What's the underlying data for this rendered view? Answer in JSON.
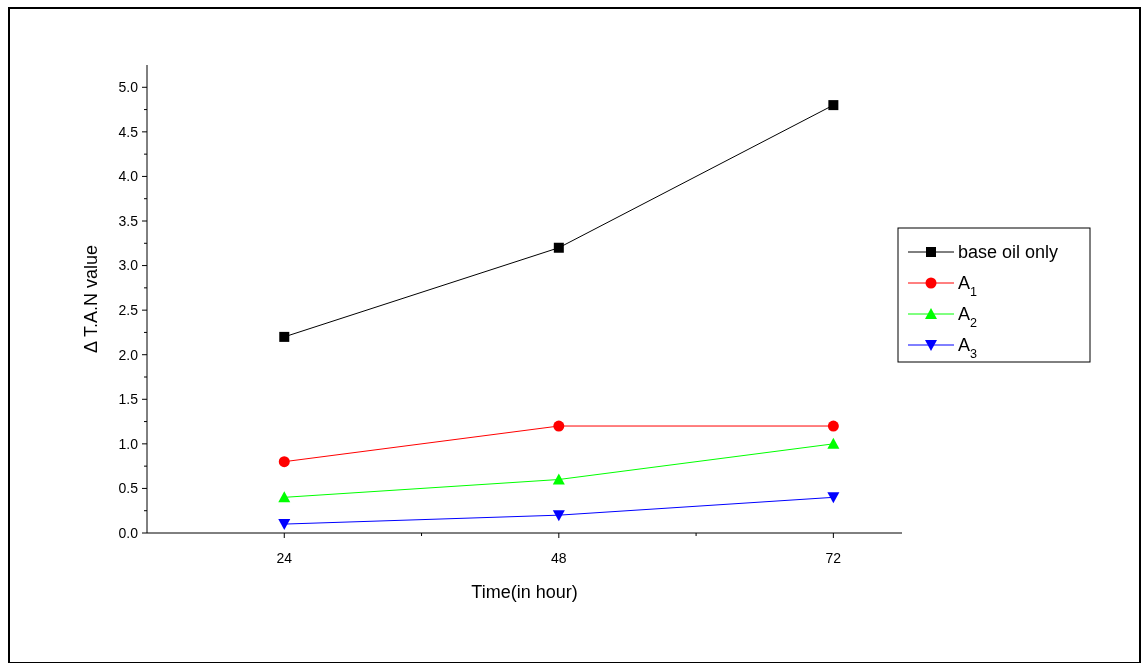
{
  "chart_data": {
    "type": "line",
    "xlabel": "Time(in hour)",
    "ylabel": "Δ T.A.N value",
    "x": [
      24,
      48,
      72
    ],
    "xlim": [
      12,
      78
    ],
    "xticks": [
      24,
      {
        "value": 36,
        "label": null
      },
      48,
      {
        "value": 60,
        "label": null
      },
      72
    ],
    "ylim": [
      0,
      5.25
    ],
    "yticks": [
      {
        "value": 0,
        "label": "0.0"
      },
      {
        "value": 0.25,
        "label": null
      },
      {
        "value": 0.5,
        "label": "0.5"
      },
      {
        "value": 0.75,
        "label": null
      },
      {
        "value": 1,
        "label": "1.0"
      },
      {
        "value": 1.25,
        "label": null
      },
      {
        "value": 1.5,
        "label": "1.5"
      },
      {
        "value": 1.75,
        "label": null
      },
      {
        "value": 2,
        "label": "2.0"
      },
      {
        "value": 2.25,
        "label": null
      },
      {
        "value": 2.5,
        "label": "2.5"
      },
      {
        "value": 2.75,
        "label": null
      },
      {
        "value": 3,
        "label": "3.0"
      },
      {
        "value": 3.25,
        "label": null
      },
      {
        "value": 3.5,
        "label": "3.5"
      },
      {
        "value": 3.75,
        "label": null
      },
      {
        "value": 4,
        "label": "4.0"
      },
      {
        "value": 4.25,
        "label": null
      },
      {
        "value": 4.5,
        "label": "4.5"
      },
      {
        "value": 4.75,
        "label": null
      },
      {
        "value": 5,
        "label": "5.0"
      }
    ],
    "grid": false,
    "legend": "right",
    "line_style": "solid",
    "series": [
      {
        "name": "base oil only",
        "color": "#000000",
        "marker": "square",
        "values": [
          2.2,
          3.2,
          4.8
        ]
      },
      {
        "name": "A$_{1}$",
        "color": "#ff0000",
        "marker": "circle",
        "values": [
          0.8,
          1.2,
          1.2
        ]
      },
      {
        "name": "A$_{2}$",
        "color": "#00ff00",
        "marker": "triangle",
        "values": [
          0.4,
          0.6,
          1.0
        ]
      },
      {
        "name": "A$_{3}$",
        "color": "#0000ff",
        "marker": "triangle-down",
        "values": [
          0.1,
          0.2,
          0.4
        ]
      }
    ]
  }
}
